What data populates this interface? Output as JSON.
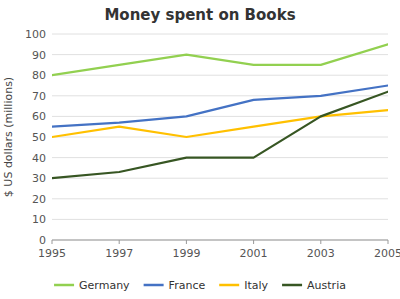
{
  "chart_data": {
    "type": "line",
    "title": "Money spent on Books",
    "ylabel": "$ US dollars (millions)",
    "x": [
      1995,
      1997,
      1999,
      2001,
      2003,
      2005
    ],
    "series": [
      {
        "name": "Germany",
        "values": [
          80,
          85,
          90,
          85,
          85,
          95
        ],
        "color": "#92d050"
      },
      {
        "name": "France",
        "values": [
          55,
          57,
          60,
          68,
          70,
          75
        ],
        "color": "#4472c4"
      },
      {
        "name": "Italy",
        "values": [
          50,
          55,
          50,
          55,
          60,
          63
        ],
        "color": "#ffc000"
      },
      {
        "name": "Austria",
        "values": [
          30,
          33,
          40,
          40,
          60,
          72
        ],
        "color": "#375623"
      }
    ],
    "xlim": [
      1995,
      2005
    ],
    "xticks": [
      1995,
      1997,
      1999,
      2001,
      2003,
      2005
    ],
    "ylim": [
      0,
      100
    ],
    "yticks": [
      0,
      10,
      20,
      30,
      40,
      50,
      60,
      70,
      80,
      90,
      100
    ],
    "grid": true,
    "legend": "bottom"
  }
}
